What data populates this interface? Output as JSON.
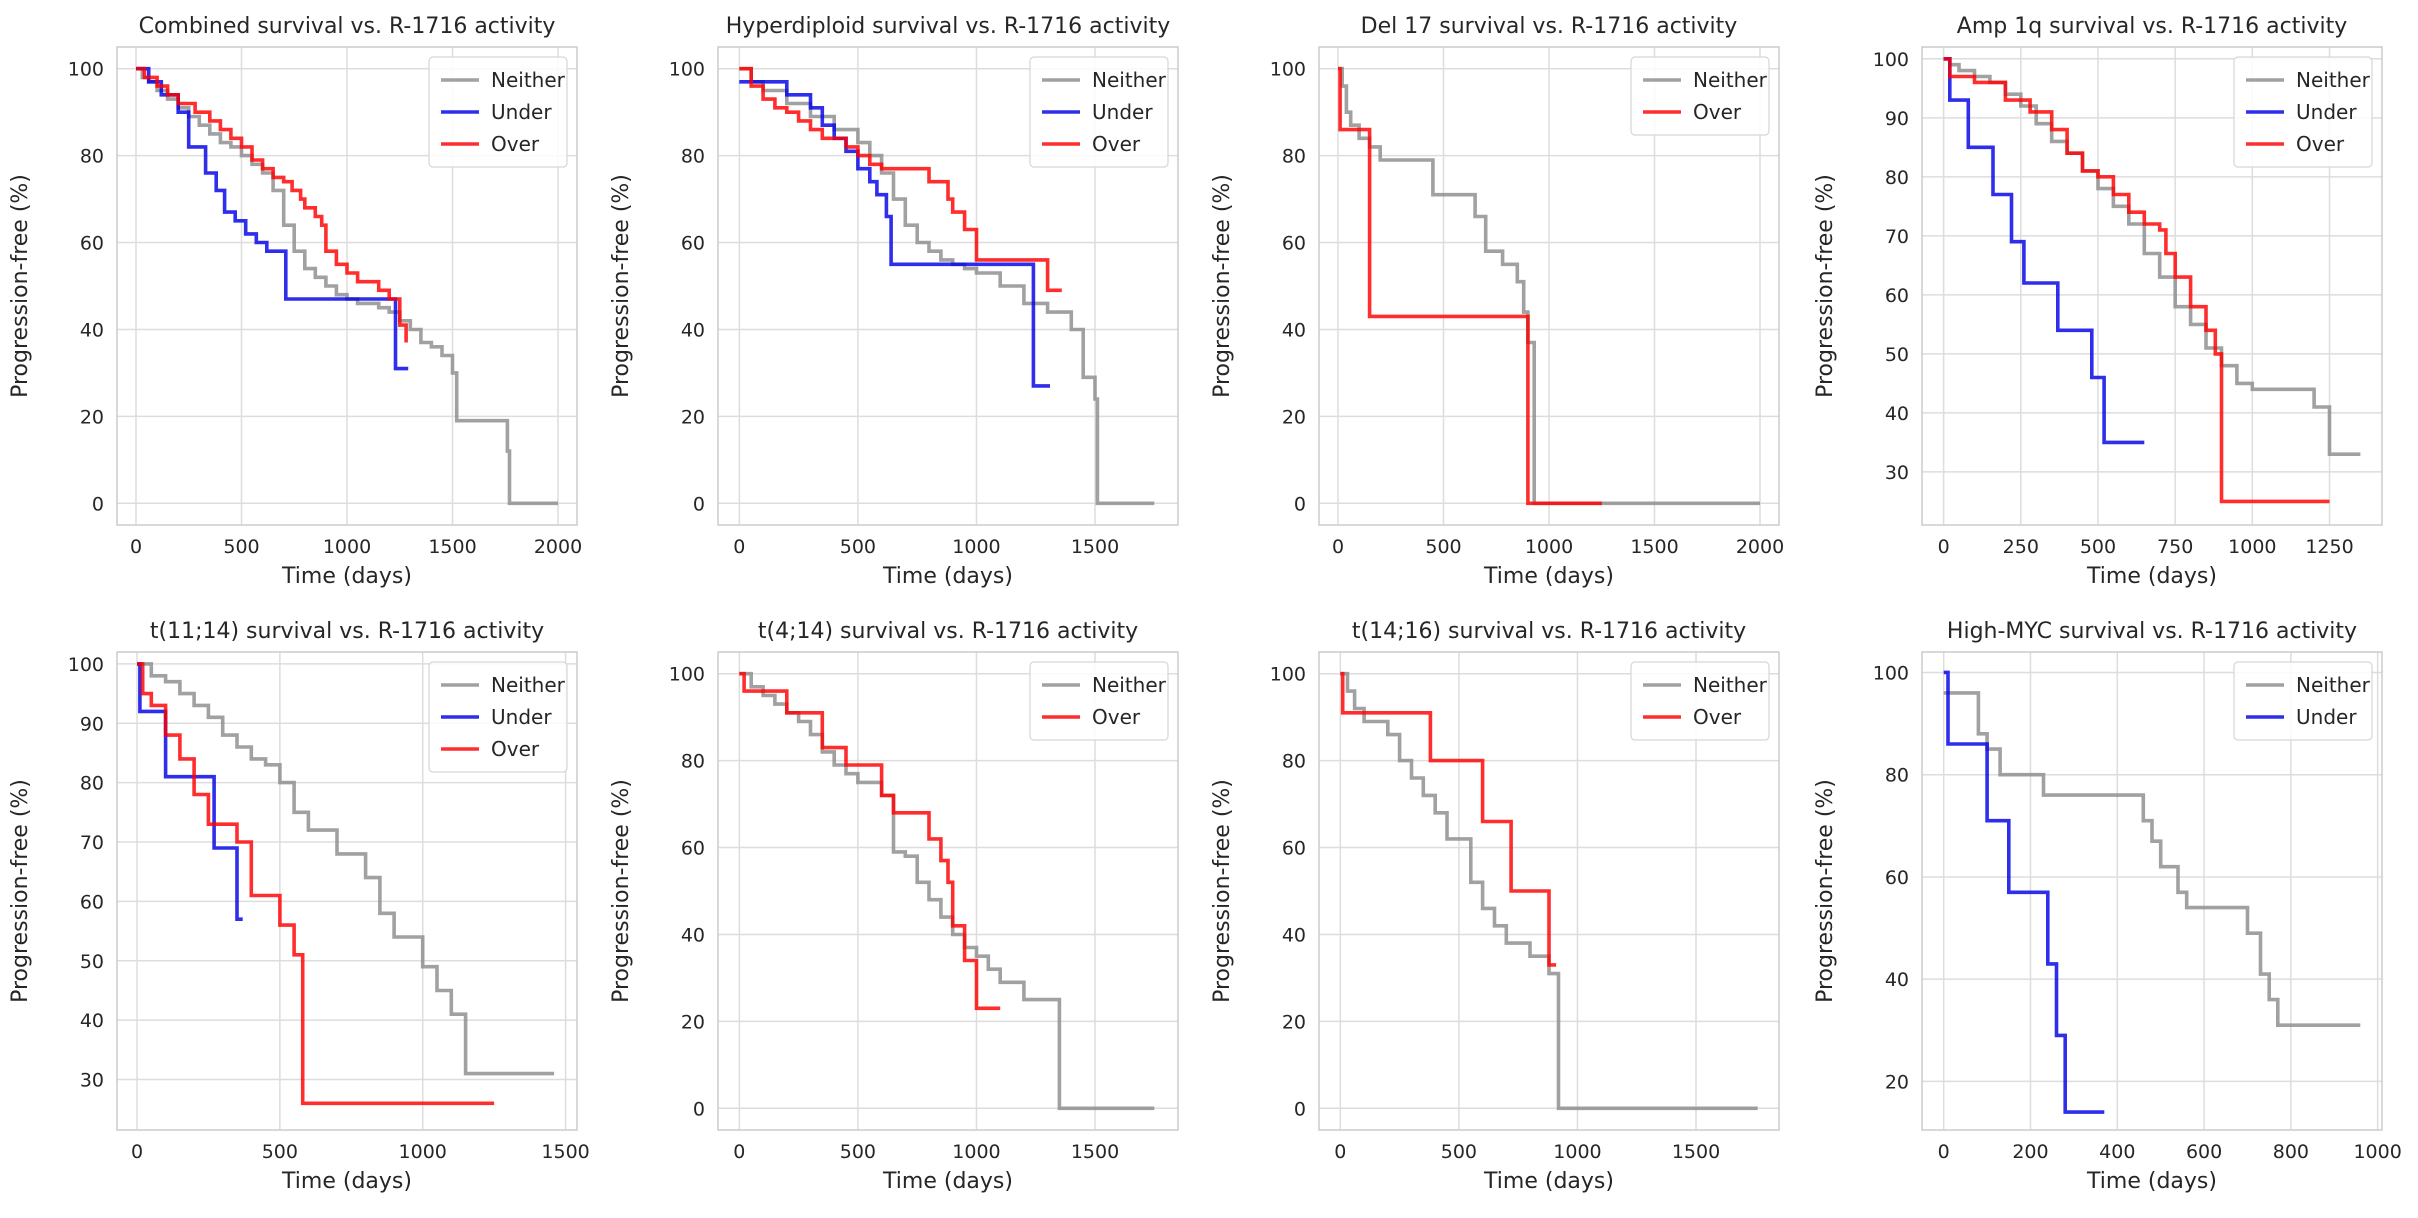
{
  "figure": {
    "colors": {
      "Neither": "#8c8c8c",
      "Under": "#0000e6",
      "Over": "#ff0000"
    }
  },
  "chart_data": [
    {
      "type": "line",
      "step": true,
      "title": "Combined survival vs. R-1716 activity",
      "xlabel": "Time (days)",
      "ylabel": "Progression-free (%)",
      "xlim": [
        -90,
        2090
      ],
      "ylim": [
        -5,
        105
      ],
      "xticks": [
        0,
        500,
        1000,
        1500,
        2000
      ],
      "yticks": [
        0,
        20,
        40,
        60,
        80,
        100
      ],
      "legend": "top-right",
      "series": [
        {
          "name": "Neither",
          "x": [
            0,
            30,
            60,
            100,
            150,
            200,
            250,
            300,
            350,
            400,
            450,
            500,
            550,
            600,
            650,
            700,
            750,
            800,
            850,
            900,
            950,
            1000,
            1050,
            1100,
            1150,
            1200,
            1250,
            1300,
            1350,
            1400,
            1450,
            1500,
            1520,
            1700,
            1760,
            1770,
            2000
          ],
          "y": [
            100,
            98,
            97,
            95,
            93,
            91,
            89,
            87,
            85,
            83,
            82,
            80,
            78,
            76,
            72,
            64,
            58,
            54,
            52,
            50,
            48,
            47,
            46,
            46,
            45,
            44,
            42,
            40,
            37,
            36,
            34,
            30,
            19,
            19,
            12,
            0,
            0
          ]
        },
        {
          "name": "Under",
          "x": [
            0,
            60,
            120,
            200,
            250,
            330,
            380,
            420,
            470,
            520,
            570,
            620,
            710,
            1000,
            1200,
            1230,
            1290
          ],
          "y": [
            100,
            97,
            94,
            90,
            82,
            76,
            72,
            67,
            65,
            62,
            60,
            58,
            47,
            47,
            47,
            31,
            31
          ]
        },
        {
          "name": "Over",
          "x": [
            0,
            40,
            100,
            150,
            200,
            280,
            350,
            400,
            450,
            500,
            550,
            600,
            650,
            700,
            740,
            780,
            800,
            850,
            880,
            900,
            950,
            1000,
            1050,
            1150,
            1200,
            1250,
            1280
          ],
          "y": [
            100,
            98,
            96,
            94,
            92,
            90,
            88,
            86,
            84,
            82,
            79,
            77,
            75,
            74,
            72,
            70,
            68,
            66,
            64,
            58,
            55,
            53,
            51,
            49,
            47,
            41,
            37
          ]
        }
      ]
    },
    {
      "type": "line",
      "step": true,
      "title": "Hyperdiploid survival vs. R-1716 activity",
      "xlabel": "Time (days)",
      "ylabel": "Progression-free (%)",
      "xlim": [
        -90,
        1850
      ],
      "ylim": [
        -5,
        105
      ],
      "xticks": [
        0,
        500,
        1000,
        1500
      ],
      "yticks": [
        0,
        20,
        40,
        60,
        80,
        100
      ],
      "legend": "top-right",
      "series": [
        {
          "name": "Neither",
          "x": [
            0,
            50,
            100,
            200,
            300,
            400,
            500,
            550,
            600,
            650,
            700,
            750,
            800,
            850,
            900,
            950,
            1000,
            1100,
            1200,
            1300,
            1400,
            1450,
            1500,
            1510,
            1520,
            1750
          ],
          "y": [
            100,
            97,
            95,
            92,
            89,
            86,
            83,
            80,
            76,
            70,
            64,
            60,
            58,
            56,
            55,
            54,
            53,
            50,
            46,
            44,
            40,
            29,
            24,
            0,
            0,
            0
          ]
        },
        {
          "name": "Under",
          "x": [
            0,
            100,
            200,
            300,
            350,
            400,
            450,
            500,
            550,
            580,
            620,
            640,
            1000,
            1200,
            1240,
            1310
          ],
          "y": [
            97,
            97,
            94,
            91,
            87,
            84,
            81,
            77,
            74,
            71,
            66,
            55,
            55,
            55,
            27,
            27
          ]
        },
        {
          "name": "Over",
          "x": [
            0,
            50,
            100,
            150,
            200,
            250,
            300,
            350,
            400,
            450,
            500,
            550,
            600,
            650,
            700,
            800,
            880,
            900,
            950,
            1000,
            1100,
            1200,
            1300,
            1360
          ],
          "y": [
            100,
            96,
            93,
            91,
            90,
            88,
            86,
            84,
            84,
            82,
            80,
            78,
            77,
            77,
            77,
            74,
            70,
            67,
            63,
            56,
            56,
            56,
            49,
            49
          ]
        }
      ]
    },
    {
      "type": "line",
      "step": true,
      "title": "Del 17 survival vs. R-1716 activity",
      "xlabel": "Time (days)",
      "ylabel": "Progression-free (%)",
      "xlim": [
        -90,
        2090
      ],
      "ylim": [
        -5,
        105
      ],
      "xticks": [
        0,
        500,
        1000,
        1500,
        2000
      ],
      "yticks": [
        0,
        20,
        40,
        60,
        80,
        100
      ],
      "legend": "top-right",
      "series": [
        {
          "name": "Neither",
          "x": [
            0,
            20,
            40,
            60,
            100,
            150,
            200,
            350,
            450,
            550,
            650,
            700,
            780,
            850,
            880,
            900,
            930,
            1250,
            2000
          ],
          "y": [
            100,
            96,
            90,
            87,
            84,
            82,
            79,
            79,
            71,
            71,
            66,
            58,
            55,
            51,
            44,
            37,
            0,
            0,
            0
          ]
        },
        {
          "name": "Over",
          "x": [
            0,
            10,
            150,
            880,
            900,
            1250
          ],
          "y": [
            100,
            86,
            43,
            43,
            0,
            0
          ]
        }
      ]
    },
    {
      "type": "line",
      "step": true,
      "title": "Amp 1q survival vs. R-1716 activity",
      "xlabel": "Time (days)",
      "ylabel": "Progression-free (%)",
      "xlim": [
        -70,
        1420
      ],
      "ylim": [
        21,
        102
      ],
      "xticks": [
        0,
        250,
        500,
        750,
        1000,
        1250
      ],
      "yticks": [
        30,
        40,
        50,
        60,
        70,
        80,
        90,
        100
      ],
      "legend": "top-right",
      "series": [
        {
          "name": "Neither",
          "x": [
            0,
            20,
            50,
            100,
            150,
            200,
            250,
            300,
            350,
            400,
            450,
            500,
            550,
            600,
            650,
            700,
            750,
            800,
            850,
            900,
            950,
            1000,
            1100,
            1200,
            1250,
            1350
          ],
          "y": [
            100,
            99,
            98,
            97,
            96,
            94,
            92,
            89,
            86,
            84,
            81,
            78,
            75,
            72,
            67,
            63,
            58,
            55,
            51,
            48,
            45,
            44,
            44,
            41,
            33,
            33
          ]
        },
        {
          "name": "Under",
          "x": [
            0,
            20,
            80,
            160,
            220,
            260,
            330,
            370,
            480,
            500,
            520,
            650
          ],
          "y": [
            100,
            93,
            85,
            77,
            69,
            62,
            62,
            54,
            46,
            46,
            35,
            35
          ]
        },
        {
          "name": "Over",
          "x": [
            0,
            20,
            100,
            200,
            280,
            350,
            400,
            450,
            500,
            550,
            600,
            650,
            700,
            720,
            750,
            800,
            850,
            880,
            900,
            1000,
            1250
          ],
          "y": [
            100,
            97,
            96,
            93,
            91,
            88,
            84,
            81,
            80,
            77,
            74,
            72,
            71,
            67,
            63,
            58,
            54,
            50,
            25,
            25,
            25
          ]
        }
      ]
    },
    {
      "type": "line",
      "step": true,
      "title": "t(11;14) survival vs. R-1716 activity",
      "xlabel": "Time (days)",
      "ylabel": "Progression-free (%)",
      "xlim": [
        -70,
        1540
      ],
      "ylim": [
        21.5,
        102
      ],
      "xticks": [
        0,
        500,
        1000,
        1500
      ],
      "yticks": [
        30,
        40,
        50,
        60,
        70,
        80,
        90,
        100
      ],
      "legend": "top-right",
      "series": [
        {
          "name": "Neither",
          "x": [
            0,
            50,
            100,
            150,
            200,
            250,
            300,
            350,
            400,
            450,
            500,
            550,
            600,
            700,
            800,
            850,
            900,
            1000,
            1050,
            1100,
            1150,
            1460
          ],
          "y": [
            100,
            98,
            97,
            95,
            93,
            91,
            88,
            86,
            84,
            83,
            80,
            75,
            72,
            68,
            64,
            58,
            54,
            49,
            45,
            41,
            31,
            31
          ]
        },
        {
          "name": "Under",
          "x": [
            0,
            10,
            50,
            100,
            250,
            270,
            300,
            350,
            370
          ],
          "y": [
            100,
            92,
            92,
            81,
            81,
            69,
            69,
            57,
            57
          ]
        },
        {
          "name": "Over",
          "x": [
            0,
            20,
            50,
            100,
            150,
            200,
            250,
            300,
            350,
            400,
            450,
            500,
            550,
            580,
            1250
          ],
          "y": [
            100,
            95,
            93,
            88,
            84,
            78,
            73,
            73,
            70,
            61,
            61,
            56,
            51,
            26,
            26
          ]
        }
      ]
    },
    {
      "type": "line",
      "step": true,
      "title": "t(4;14) survival vs. R-1716 activity",
      "xlabel": "Time (days)",
      "ylabel": "Progression-free (%)",
      "xlim": [
        -90,
        1850
      ],
      "ylim": [
        -5,
        105
      ],
      "xticks": [
        0,
        500,
        1000,
        1500
      ],
      "yticks": [
        0,
        20,
        40,
        60,
        80,
        100
      ],
      "legend": "top-right",
      "series": [
        {
          "name": "Neither",
          "x": [
            0,
            50,
            100,
            150,
            200,
            250,
            300,
            350,
            400,
            450,
            500,
            550,
            600,
            650,
            700,
            750,
            800,
            850,
            900,
            950,
            1000,
            1050,
            1100,
            1200,
            1350,
            1750
          ],
          "y": [
            100,
            97,
            95,
            93,
            91,
            89,
            86,
            82,
            79,
            77,
            75,
            75,
            72,
            59,
            58,
            52,
            48,
            44,
            40,
            37,
            35,
            32,
            29,
            25,
            0,
            0
          ]
        },
        {
          "name": "Over",
          "x": [
            0,
            20,
            200,
            350,
            450,
            600,
            650,
            800,
            850,
            880,
            900,
            950,
            1000,
            1100
          ],
          "y": [
            100,
            96,
            91,
            83,
            79,
            72,
            68,
            62,
            57,
            52,
            42,
            34,
            23,
            23
          ]
        }
      ]
    },
    {
      "type": "line",
      "step": true,
      "title": "t(14;16) survival vs. R-1716 activity",
      "xlabel": "Time (days)",
      "ylabel": "Progression-free (%)",
      "xlim": [
        -90,
        1850
      ],
      "ylim": [
        -5,
        105
      ],
      "xticks": [
        0,
        500,
        1000,
        1500
      ],
      "yticks": [
        0,
        20,
        40,
        60,
        80,
        100
      ],
      "legend": "top-right",
      "series": [
        {
          "name": "Neither",
          "x": [
            0,
            30,
            60,
            100,
            200,
            250,
            300,
            350,
            400,
            450,
            550,
            600,
            650,
            700,
            800,
            880,
            920,
            1760
          ],
          "y": [
            100,
            96,
            92,
            89,
            86,
            80,
            76,
            72,
            68,
            62,
            52,
            46,
            42,
            38,
            35,
            31,
            0,
            0
          ]
        },
        {
          "name": "Over",
          "x": [
            0,
            10,
            380,
            600,
            720,
            880,
            910
          ],
          "y": [
            100,
            91,
            80,
            66,
            50,
            33,
            33
          ]
        }
      ]
    },
    {
      "type": "line",
      "step": true,
      "title": "High-MYC survival vs. R-1716 activity",
      "xlabel": "Time (days)",
      "ylabel": "Progression-free (%)",
      "xlim": [
        -50,
        1010
      ],
      "ylim": [
        10.5,
        104
      ],
      "xticks": [
        0,
        200,
        400,
        600,
        800,
        1000
      ],
      "yticks": [
        20,
        40,
        60,
        80,
        100
      ],
      "legend": "top-right",
      "series": [
        {
          "name": "Neither",
          "x": [
            0,
            20,
            80,
            100,
            130,
            150,
            230,
            250,
            300,
            460,
            480,
            500,
            540,
            560,
            640,
            700,
            730,
            750,
            770,
            960
          ],
          "y": [
            96,
            96,
            88,
            85,
            80,
            80,
            76,
            76,
            76,
            71,
            67,
            62,
            57,
            54,
            54,
            49,
            41,
            36,
            31,
            31
          ]
        },
        {
          "name": "Under",
          "x": [
            0,
            10,
            100,
            150,
            240,
            260,
            280,
            370
          ],
          "y": [
            100,
            86,
            71,
            57,
            43,
            29,
            14,
            14
          ]
        }
      ]
    }
  ]
}
